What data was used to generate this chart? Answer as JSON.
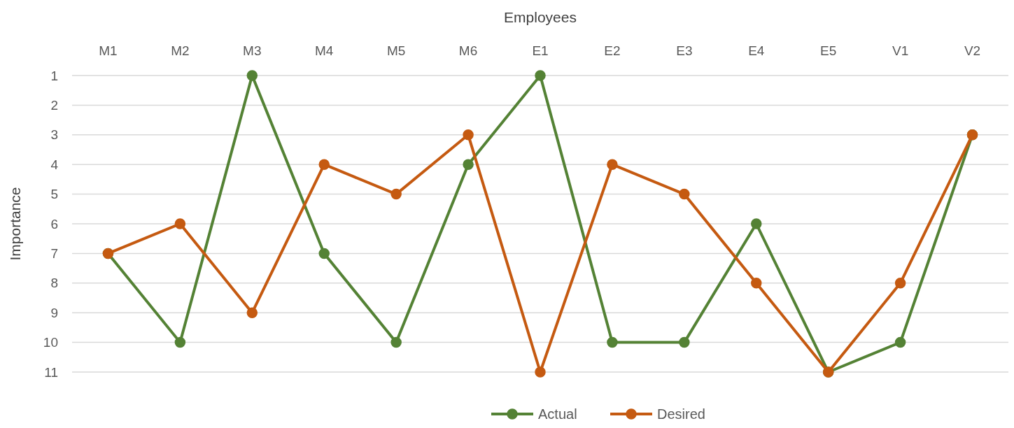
{
  "chart_data": {
    "type": "line",
    "xlabel": "Employees",
    "ylabel": "Importance",
    "categories": [
      "M1",
      "M2",
      "M3",
      "M4",
      "M5",
      "M6",
      "E1",
      "E2",
      "E3",
      "E4",
      "E5",
      "V1",
      "V2"
    ],
    "series": [
      {
        "name": "Actual",
        "color": "#548235",
        "values": [
          7,
          10,
          1,
          7,
          10,
          4,
          1,
          10,
          10,
          6,
          11,
          10,
          3
        ]
      },
      {
        "name": "Desired",
        "color": "#c55a11",
        "values": [
          7,
          6,
          9,
          4,
          5,
          3,
          11,
          4,
          5,
          8,
          11,
          8,
          3
        ]
      }
    ],
    "ylim": [
      11,
      1
    ],
    "yticks": [
      1,
      2,
      3,
      4,
      5,
      6,
      7,
      8,
      9,
      10,
      11
    ],
    "grid": "y",
    "legend": "bottom",
    "marker": "circle",
    "line_style": "solid"
  }
}
